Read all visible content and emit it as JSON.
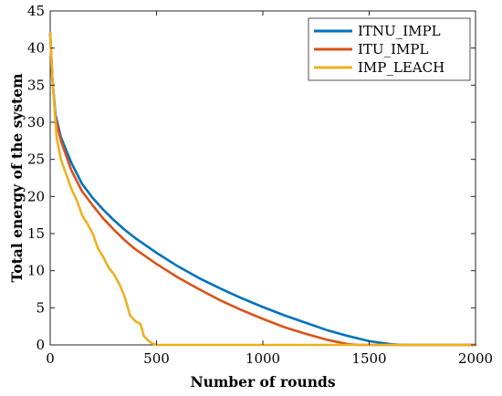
{
  "chart_data": {
    "type": "line",
    "title": "",
    "xlabel": "Number of rounds",
    "ylabel": "Total energy of the system",
    "xlim": [
      0,
      2000
    ],
    "ylim": [
      0,
      45
    ],
    "xticks": [
      0,
      500,
      1000,
      1500,
      2000
    ],
    "yticks": [
      0,
      5,
      10,
      15,
      20,
      25,
      30,
      35,
      40,
      45
    ],
    "grid": false,
    "legend": "top-right",
    "series": [
      {
        "name": "ITNU_IMPL",
        "color": "#0072BD",
        "x": [
          0,
          10,
          25,
          50,
          100,
          150,
          200,
          250,
          300,
          350,
          400,
          500,
          600,
          700,
          800,
          900,
          1000,
          1100,
          1200,
          1300,
          1400,
          1500,
          1600,
          1650,
          1700,
          1750,
          1800,
          2000
        ],
        "y": [
          42,
          36,
          31,
          28,
          24.5,
          21.7,
          19.8,
          18.2,
          16.8,
          15.5,
          14.4,
          12.4,
          10.6,
          9.0,
          7.6,
          6.3,
          5.1,
          4.0,
          3.0,
          2.0,
          1.2,
          0.5,
          0.1,
          0,
          0,
          0,
          0,
          0
        ]
      },
      {
        "name": "ITU_IMPL",
        "color": "#D95319",
        "x": [
          0,
          10,
          25,
          50,
          100,
          150,
          200,
          250,
          300,
          350,
          400,
          500,
          600,
          700,
          800,
          900,
          1000,
          1100,
          1200,
          1300,
          1400,
          1450,
          1500,
          2000
        ],
        "y": [
          42,
          36,
          30.5,
          27.5,
          23.5,
          20.7,
          18.8,
          17.0,
          15.5,
          14.1,
          12.9,
          10.9,
          9.1,
          7.5,
          6.0,
          4.7,
          3.5,
          2.4,
          1.5,
          0.7,
          0.1,
          0,
          0,
          0
        ]
      },
      {
        "name": "IMP_LEACH",
        "color": "#EDB120",
        "x": [
          0,
          10,
          20,
          30,
          50,
          75,
          100,
          125,
          150,
          175,
          200,
          225,
          250,
          275,
          300,
          325,
          350,
          375,
          400,
          425,
          440,
          460,
          480,
          500,
          2000
        ],
        "y": [
          42,
          36,
          32,
          28,
          25,
          23,
          21,
          19.5,
          17.5,
          16.3,
          15.0,
          13.0,
          11.8,
          10.4,
          9.5,
          8.2,
          6.5,
          4.0,
          3.2,
          2.8,
          1.2,
          0.6,
          0.2,
          0,
          0
        ]
      }
    ]
  }
}
